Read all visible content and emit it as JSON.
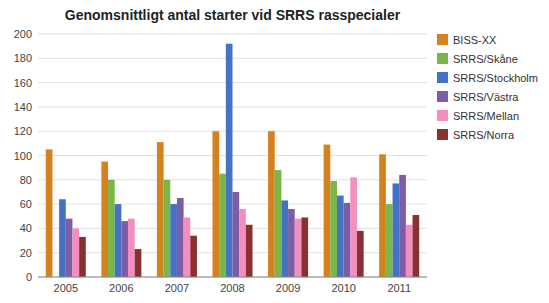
{
  "chart_data": {
    "type": "bar",
    "title": "Genomsnittligt antal starter vid SRRS rasspecialer",
    "categories": [
      "2005",
      "2006",
      "2007",
      "2008",
      "2009",
      "2010",
      "2011"
    ],
    "series": [
      {
        "name": "BISS-XX",
        "color": "#D4821E",
        "values": [
          105,
          95,
          111,
          120,
          120,
          109,
          101
        ]
      },
      {
        "name": "SRRS/Skåne",
        "color": "#7AB648",
        "values": [
          0,
          80,
          80,
          85,
          88,
          79,
          60
        ]
      },
      {
        "name": "SRRS/Stockholm",
        "color": "#4472C4",
        "values": [
          64,
          60,
          60,
          192,
          63,
          67,
          77
        ]
      },
      {
        "name": "SRRS/Västra",
        "color": "#7B5EA7",
        "values": [
          48,
          46,
          65,
          70,
          56,
          61,
          84
        ]
      },
      {
        "name": "SRRS/Mellan",
        "color": "#F48EBE",
        "values": [
          40,
          48,
          49,
          56,
          48,
          82,
          43
        ]
      },
      {
        "name": "SRRS/Norra",
        "color": "#8B3030",
        "values": [
          33,
          23,
          34,
          43,
          49,
          38,
          51
        ]
      }
    ],
    "ylim": [
      0,
      200
    ],
    "yticks": [
      0,
      20,
      40,
      60,
      80,
      100,
      120,
      140,
      160,
      180,
      200
    ],
    "grid": true,
    "legend": "right"
  }
}
